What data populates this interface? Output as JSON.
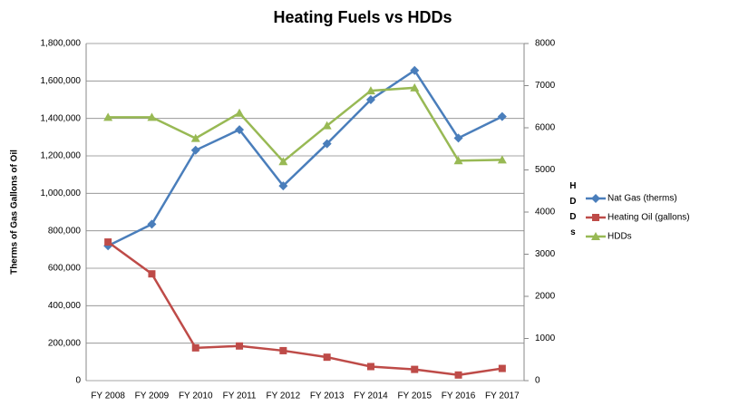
{
  "chart_data": {
    "type": "line",
    "title": "Heating Fuels vs HDDs",
    "y_label": "Therms of Gas Gallons of Oil",
    "y2_label": "HDDs",
    "categories": [
      "FY 2008",
      "FY 2009",
      "FY 2010",
      "FY 2011",
      "FY 2012",
      "FY 2013",
      "FY 2014",
      "FY 2015",
      "FY 2016",
      "FY 2017"
    ],
    "series": [
      {
        "name": "Nat Gas (therms)",
        "color": "#4a7ebb",
        "marker": "diamond",
        "values": [
          720000,
          835000,
          1230000,
          1340000,
          1040000,
          1265000,
          1500000,
          1656000,
          1295000,
          1410000
        ]
      },
      {
        "name": "Heating Oil (gallons)",
        "color": "#be4b48",
        "marker": "square",
        "values": [
          740000,
          570000,
          175000,
          185000,
          160000,
          125000,
          75000,
          60000,
          30000,
          65000
        ]
      },
      {
        "name": "HDDs",
        "color": "#98b954",
        "marker": "triangle",
        "axis": "y2",
        "values": [
          6250,
          6250,
          5750,
          6350,
          5200,
          6050,
          6880,
          6950,
          5220,
          5240
        ]
      }
    ],
    "ylim": [
      0,
      1800000
    ],
    "yticks": [
      0,
      {
        "value": 200000,
        "label": "200,000"
      },
      {
        "value": 400000,
        "label": "400,000"
      },
      {
        "value": 600000,
        "label": "600,000"
      },
      {
        "value": 800000,
        "label": "800,000"
      },
      {
        "value": 1000000,
        "label": "1,000,000"
      },
      {
        "value": 1200000,
        "label": "1,200,000"
      },
      {
        "value": 1400000,
        "label": "1,400,000"
      },
      {
        "value": 1600000,
        "label": "1,600,000"
      },
      {
        "value": 1800000,
        "label": "1,800,000"
      }
    ],
    "y2lim": [
      0,
      8000
    ],
    "y2ticks": [
      0,
      1000,
      2000,
      3000,
      4000,
      5000,
      6000,
      7000,
      8000
    ],
    "grid": true,
    "legend": "right"
  }
}
